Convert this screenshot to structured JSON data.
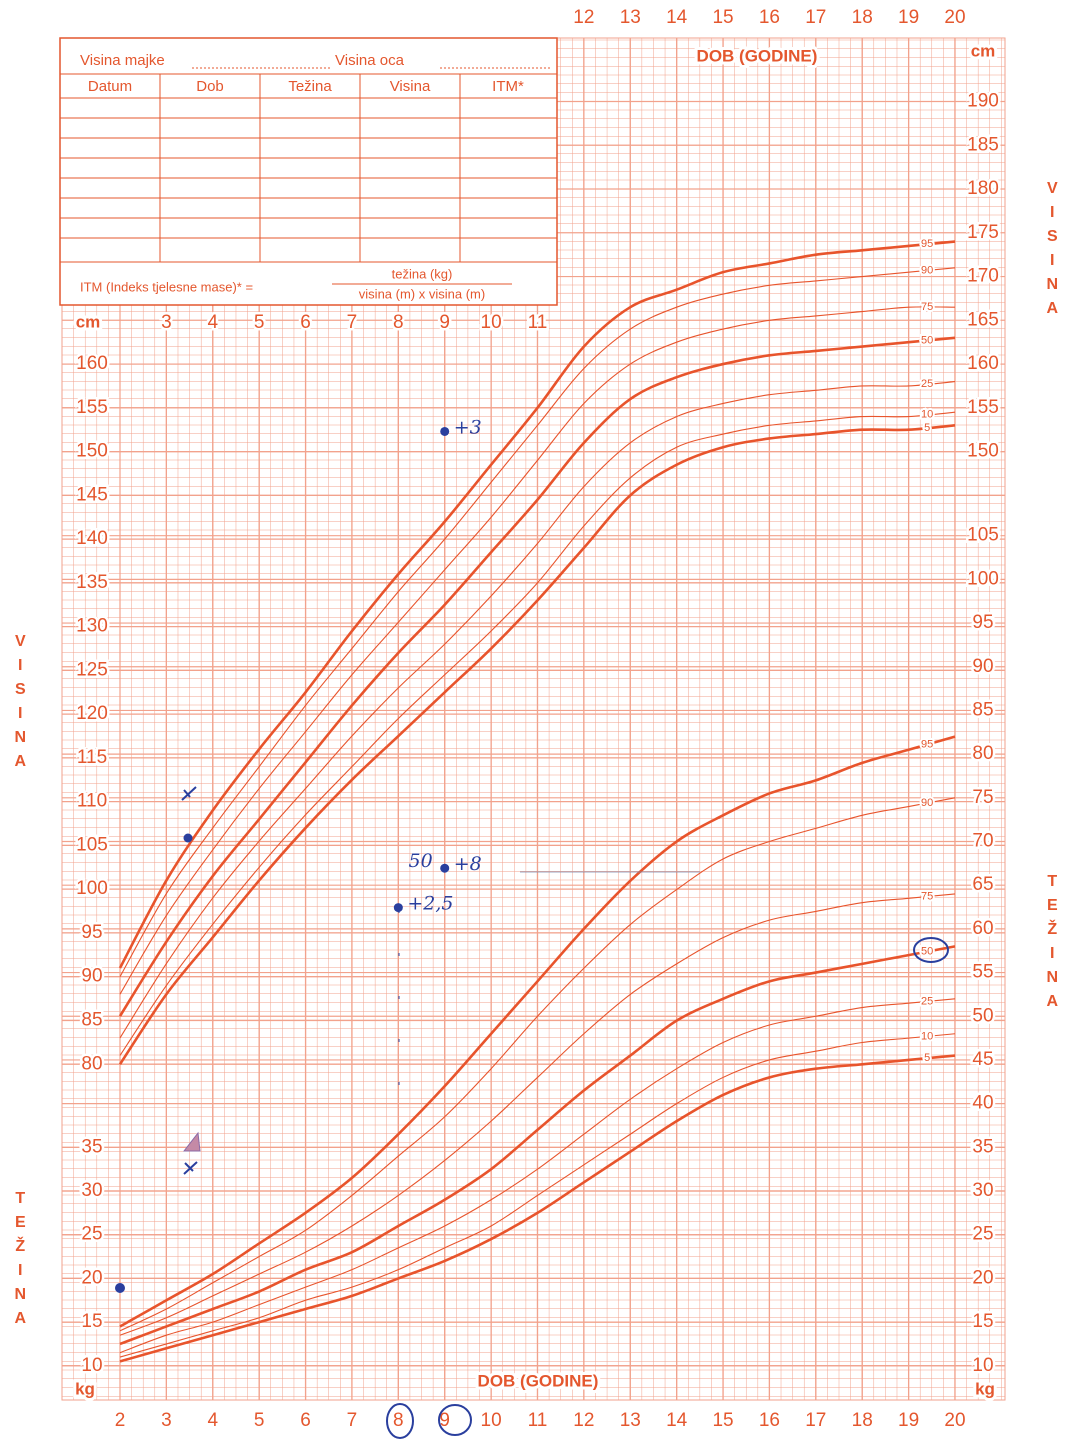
{
  "form": {
    "mother_height": "Visina majke",
    "father_height": "Visina oca",
    "columns": [
      "Datum",
      "Dob",
      "Težina",
      "Visina",
      "ITM*"
    ],
    "bmi_label": "ITM (Indeks tjelesne mase)* =",
    "bmi_numerator": "težina (kg)",
    "bmi_denominator": "visina (m) x visina (m)"
  },
  "chart_data": [
    {
      "type": "line",
      "xlabel": "DOB (GODINE)",
      "ylabel": "VISINA",
      "y_unit": "cm",
      "x": [
        2,
        3,
        4,
        5,
        6,
        7,
        8,
        9,
        10,
        11,
        12,
        13,
        14,
        15,
        16,
        17,
        18,
        19,
        20
      ],
      "xlim": [
        0.7,
        21.1
      ],
      "xticks": [
        3,
        4,
        5,
        6,
        7,
        8,
        9,
        10,
        11,
        12,
        13,
        14,
        15,
        16,
        17,
        18,
        19,
        20
      ],
      "ylim": [
        75,
        196
      ],
      "yticks": [
        80,
        85,
        90,
        95,
        100,
        105,
        110,
        115,
        120,
        125,
        130,
        135,
        140,
        145,
        150,
        155,
        160
      ],
      "y2lim": [
        75,
        196
      ],
      "y2ticks": [
        150,
        155,
        160,
        165,
        170,
        175,
        180,
        185,
        190
      ],
      "series": [
        {
          "name": "95",
          "color": "#e8542c",
          "line_width": 2.6,
          "values": [
            91,
            101,
            109,
            116,
            122.5,
            129.5,
            136,
            142,
            148.5,
            155,
            162,
            166.5,
            168.5,
            170.5,
            171.5,
            172.5,
            173,
            173.5,
            174
          ]
        },
        {
          "name": "90",
          "color": "#e8542c",
          "line_width": 1.1,
          "values": [
            90,
            99.5,
            107,
            114,
            121,
            127.5,
            134,
            140,
            146.5,
            153,
            159.5,
            164,
            166.5,
            168,
            169,
            169.5,
            170,
            170.5,
            171
          ]
        },
        {
          "name": "75",
          "color": "#e8542c",
          "line_width": 1.1,
          "values": [
            88,
            97,
            104.5,
            111.5,
            118,
            124.5,
            130.5,
            136.5,
            142.5,
            149,
            155.5,
            160,
            162.5,
            164,
            165,
            165.5,
            166,
            166.5,
            166.5
          ]
        },
        {
          "name": "50",
          "color": "#e8542c",
          "line_width": 2.6,
          "values": [
            85.5,
            94,
            101.5,
            108,
            114.5,
            121,
            127,
            132.5,
            138.5,
            144.5,
            151,
            156,
            158.5,
            160,
            161,
            161.5,
            162,
            162.5,
            163
          ]
        },
        {
          "name": "25",
          "color": "#e8542c",
          "line_width": 1.1,
          "values": [
            83,
            91.5,
            99,
            105.5,
            111.5,
            117.5,
            123,
            128,
            133.5,
            139.5,
            146,
            151,
            154,
            155.5,
            156.5,
            157,
            157.5,
            157.5,
            158
          ]
        },
        {
          "name": "10",
          "color": "#e8542c",
          "line_width": 1.1,
          "values": [
            81,
            89,
            96,
            102.5,
            108.5,
            114,
            119.5,
            124.5,
            129.5,
            135,
            141.5,
            147,
            150.5,
            152,
            153,
            153.5,
            154,
            154,
            154.5
          ]
        },
        {
          "name": "5",
          "color": "#e8542c",
          "line_width": 2.6,
          "values": [
            80,
            88,
            94.5,
            101,
            107,
            112.5,
            117.5,
            122.5,
            127.5,
            133,
            139,
            145,
            148.5,
            150.5,
            151.5,
            152,
            152.5,
            152.5,
            153
          ]
        }
      ],
      "annotations": [
        {
          "text": "+3",
          "x": 9,
          "y": 152.3
        },
        {
          "text": "+8",
          "prefix": "50",
          "x": 9,
          "y": 102.4
        },
        {
          "text": "+2,5",
          "x": 8,
          "y": 97.9
        }
      ]
    },
    {
      "type": "line",
      "xlabel": "DOB (GODINE)",
      "ylabel": "TEŽINA",
      "y_unit": "kg",
      "x": [
        2,
        3,
        4,
        5,
        6,
        7,
        8,
        9,
        10,
        11,
        12,
        13,
        14,
        15,
        16,
        17,
        18,
        19,
        20
      ],
      "xlim": [
        0.7,
        21.1
      ],
      "xticks": [
        2,
        3,
        4,
        5,
        6,
        7,
        8,
        9,
        10,
        11,
        12,
        13,
        14,
        15,
        16,
        17,
        18,
        19,
        20
      ],
      "ylim": [
        7,
        110
      ],
      "yticks": [
        10,
        15,
        20,
        25,
        30,
        35
      ],
      "y2lim": [
        7,
        110
      ],
      "y2ticks": [
        10,
        15,
        20,
        25,
        30,
        35,
        40,
        45,
        50,
        55,
        60,
        65,
        70,
        75,
        80,
        85,
        90,
        95,
        100,
        105
      ],
      "series": [
        {
          "name": "95",
          "color": "#e8542c",
          "line_width": 2.6,
          "values": [
            14.5,
            17.5,
            20.5,
            24,
            27.5,
            31.5,
            36.5,
            42,
            48,
            54,
            60,
            65.5,
            70,
            73,
            75.5,
            77,
            79,
            80.5,
            82
          ]
        },
        {
          "name": "90",
          "color": "#e8542c",
          "line_width": 1.1,
          "values": [
            14,
            16.5,
            19.5,
            22.5,
            25.5,
            29.5,
            34,
            38.5,
            44,
            50,
            55.5,
            60.5,
            64.5,
            68,
            70,
            71.5,
            73,
            74,
            75
          ]
        },
        {
          "name": "75",
          "color": "#e8542c",
          "line_width": 1.1,
          "values": [
            13.5,
            15.5,
            18,
            20.5,
            23,
            26,
            29.5,
            33.5,
            38,
            43,
            48,
            52.5,
            56,
            59,
            61,
            62,
            63,
            63.5,
            64
          ]
        },
        {
          "name": "50",
          "color": "#e8542c",
          "line_width": 2.6,
          "values": [
            12.5,
            14.5,
            16.5,
            18.5,
            21,
            23,
            26,
            29,
            32.5,
            37,
            41.5,
            45.5,
            49.5,
            52,
            54,
            55,
            56,
            57,
            58
          ]
        },
        {
          "name": "25",
          "color": "#e8542c",
          "line_width": 1.1,
          "values": [
            11.5,
            13.5,
            15,
            17,
            19,
            21,
            23.5,
            26,
            29,
            32.5,
            36.5,
            40.5,
            44,
            47,
            49,
            50,
            51,
            51.5,
            52
          ]
        },
        {
          "name": "10",
          "color": "#e8542c",
          "line_width": 1.1,
          "values": [
            11,
            12.5,
            14,
            15.5,
            17.5,
            19,
            21,
            23.5,
            26,
            29.5,
            33,
            36.5,
            40,
            43,
            45,
            46,
            47,
            47.5,
            48
          ]
        },
        {
          "name": "5",
          "color": "#e8542c",
          "line_width": 2.6,
          "values": [
            10.5,
            12,
            13.5,
            15,
            16.5,
            18,
            20,
            22,
            24.5,
            27.5,
            31,
            34.5,
            38,
            41,
            43,
            44,
            44.5,
            45,
            45.5
          ]
        }
      ]
    }
  ]
}
